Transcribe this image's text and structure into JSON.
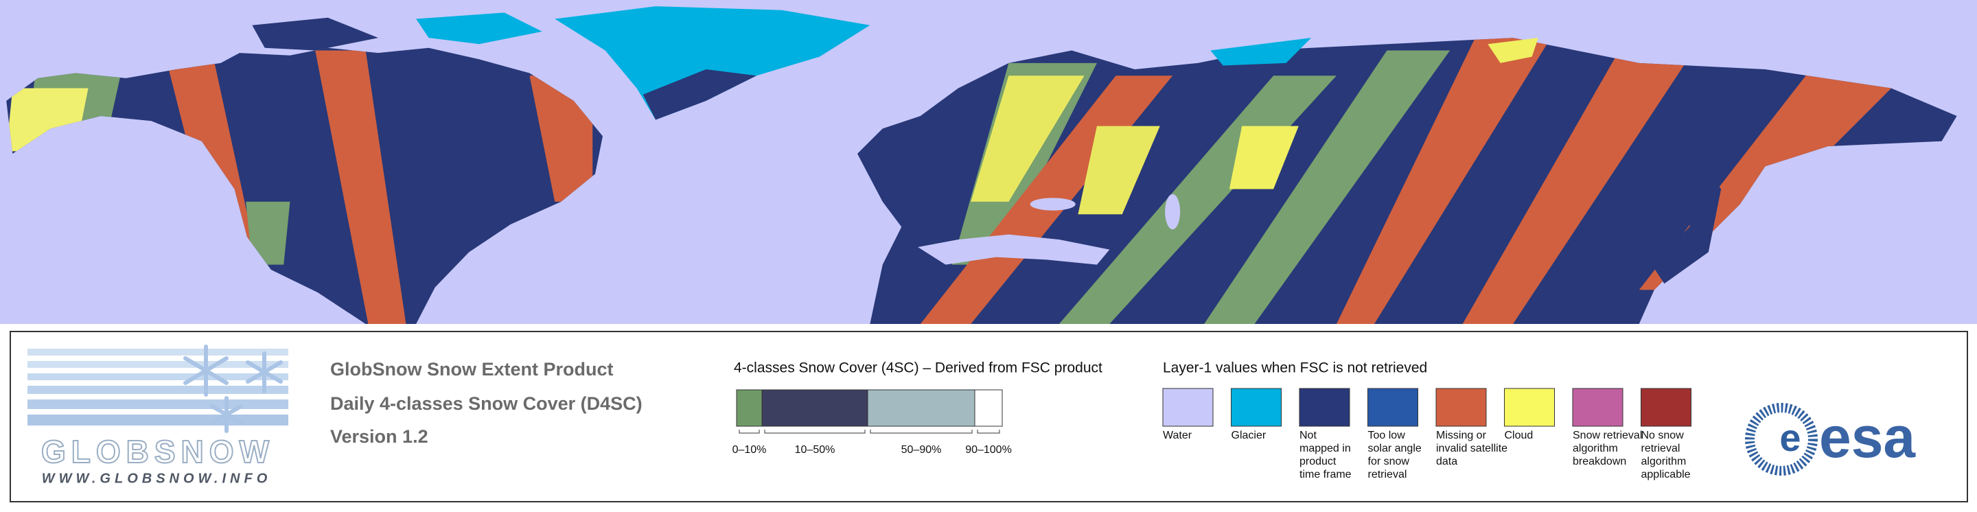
{
  "logo": {
    "name": "GLOBSNOW",
    "url": "WWW.GLOBSNOW.INFO"
  },
  "product": {
    "lines": [
      "GlobSnow Snow Extent Product",
      "Daily 4-classes Snow Cover (D4SC)",
      "Version 1.2"
    ]
  },
  "snow_cover_legend": {
    "title": "4-classes Snow Cover (4SC) – Derived from FSC product",
    "classes": [
      {
        "label": "0–10%",
        "color": "#6f9a68"
      },
      {
        "label": "10–50%",
        "color": "#3d3f60"
      },
      {
        "label": "50–90%",
        "color": "#a3bbc0"
      },
      {
        "label": "90–100%",
        "color": "#ffffff"
      }
    ]
  },
  "layer1_legend": {
    "title": "Layer-1 values when FSC is not retrieved",
    "items": [
      {
        "label": [
          "Water"
        ],
        "color": "#c8c8fa"
      },
      {
        "label": [
          "Glacier"
        ],
        "color": "#00b0e0"
      },
      {
        "label": [
          "Not",
          "mapped in",
          "product",
          "time frame"
        ],
        "color": "#283878"
      },
      {
        "label": [
          "Too low",
          "solar angle",
          "for snow",
          "retrieval"
        ],
        "color": "#2858a8"
      },
      {
        "label": [
          "Missing or",
          "invalid satellite",
          "data"
        ],
        "color": "#d06040"
      },
      {
        "label": [
          "Cloud"
        ],
        "color": "#f8f860"
      },
      {
        "label": [
          "Snow retrieval",
          "algorithm",
          "breakdown"
        ],
        "color": "#c060a0"
      },
      {
        "label": [
          "No snow",
          "retrieval",
          "algorithm",
          "applicable"
        ],
        "color": "#a03030"
      }
    ]
  },
  "agency": "esa"
}
